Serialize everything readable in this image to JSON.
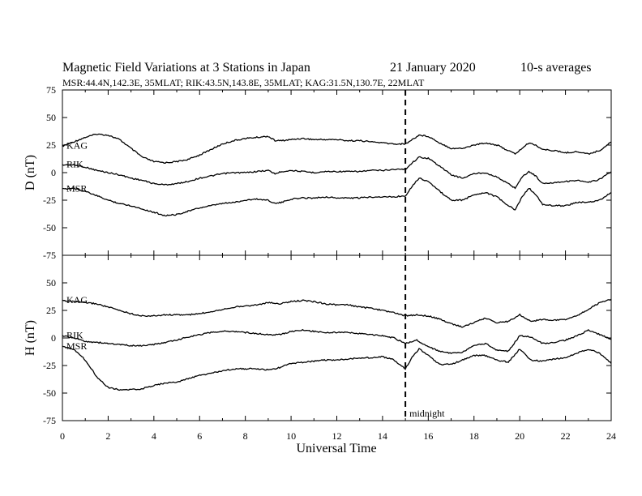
{
  "chart_data": {
    "type": "line",
    "title": {
      "main": "Magnetic Field Variations at 3 Stations in Japan",
      "date": "21 January 2020",
      "resolution": "10-s averages"
    },
    "subtitle": "MSR:44.4N,142.3E, 35MLAT;  RIK:43.5N,143.8E, 35MLAT;  KAG:31.5N,130.7E, 22MLAT",
    "xlabel": "Universal Time",
    "xlim": [
      0,
      24
    ],
    "xticks": [
      "0",
      "2",
      "4",
      "6",
      "8",
      "10",
      "12",
      "14",
      "16",
      "18",
      "20",
      "22",
      "24"
    ],
    "marker": {
      "x": 15,
      "label": "midnight"
    },
    "panels": [
      {
        "ylabel": "D (nT)",
        "ylim": [
          -75,
          75
        ],
        "yticks": [
          "75",
          "50",
          "25",
          "0",
          "-25",
          "-50",
          "-75"
        ],
        "series": [
          {
            "name": "KAG",
            "x": [
              0,
              0.5,
              1,
              1.5,
              2,
              2.5,
              3,
              3.5,
              4,
              4.5,
              5,
              5.5,
              6,
              6.5,
              7,
              7.5,
              8,
              8.5,
              9,
              9.3,
              9.6,
              10,
              10.5,
              11,
              11.5,
              12,
              12.5,
              13,
              13.5,
              14,
              14.5,
              15,
              15.3,
              15.6,
              16,
              16.5,
              17,
              17.5,
              18,
              18.5,
              19,
              19.5,
              19.8,
              20.1,
              20.4,
              20.7,
              21,
              21.5,
              22,
              22.5,
              23,
              23.5,
              24
            ],
            "values": [
              24,
              28,
              32,
              35,
              34,
              30,
              22,
              14,
              10,
              9,
              10,
              12,
              16,
              21,
              26,
              29,
              31,
              32,
              33,
              29,
              29,
              30,
              31,
              30,
              30,
              30,
              29,
              29,
              28,
              27,
              26,
              26,
              30,
              34,
              33,
              27,
              22,
              22,
              25,
              27,
              25,
              20,
              17,
              22,
              27,
              25,
              21,
              20,
              18,
              19,
              17,
              20,
              28
            ]
          },
          {
            "name": "RIK",
            "x": [
              0,
              0.5,
              1,
              1.5,
              2,
              2.5,
              3,
              3.5,
              4,
              4.5,
              5,
              5.5,
              6,
              6.5,
              7,
              7.5,
              8,
              8.5,
              9,
              9.3,
              9.6,
              10,
              10.5,
              11,
              11.5,
              12,
              12.5,
              13,
              13.5,
              14,
              14.5,
              15,
              15.3,
              15.6,
              16,
              16.5,
              17,
              17.5,
              18,
              18.5,
              19,
              19.5,
              19.8,
              20.1,
              20.4,
              20.7,
              21,
              21.5,
              22,
              22.5,
              23,
              23.5,
              24
            ],
            "values": [
              7,
              7,
              5,
              2,
              0,
              -2,
              -5,
              -7,
              -10,
              -11,
              -10,
              -8,
              -5,
              -3,
              -1,
              0,
              0,
              1,
              2,
              -1,
              1,
              2,
              1,
              0,
              1,
              1,
              1,
              1,
              2,
              2,
              3,
              3,
              9,
              14,
              13,
              6,
              -2,
              -5,
              -1,
              0,
              -4,
              -10,
              -14,
              -4,
              1,
              -3,
              -10,
              -9,
              -8,
              -7,
              -9,
              -6,
              1
            ]
          },
          {
            "name": "MSR",
            "x": [
              0,
              0.5,
              1,
              1.5,
              2,
              2.5,
              3,
              3.5,
              4,
              4.5,
              5,
              5.5,
              6,
              6.5,
              7,
              7.5,
              8,
              8.5,
              9,
              9.3,
              9.6,
              10,
              10.5,
              11,
              11.5,
              12,
              12.5,
              13,
              13.5,
              14,
              14.5,
              15,
              15.3,
              15.6,
              16,
              16.5,
              17,
              17.5,
              18,
              18.5,
              19,
              19.5,
              19.8,
              20.1,
              20.4,
              20.7,
              21,
              21.5,
              22,
              22.5,
              23,
              23.5,
              24
            ],
            "values": [
              -15,
              -14,
              -17,
              -21,
              -25,
              -28,
              -30,
              -33,
              -36,
              -39,
              -38,
              -35,
              -32,
              -30,
              -28,
              -27,
              -25,
              -24,
              -25,
              -28,
              -27,
              -24,
              -23,
              -23,
              -22,
              -23,
              -23,
              -23,
              -22,
              -22,
              -22,
              -21,
              -12,
              -5,
              -8,
              -17,
              -25,
              -25,
              -20,
              -18,
              -22,
              -30,
              -34,
              -22,
              -14,
              -20,
              -29,
              -30,
              -30,
              -27,
              -27,
              -25,
              -18
            ]
          }
        ]
      },
      {
        "ylabel": "H (nT)",
        "ylim": [
          -75,
          75
        ],
        "yticks": [
          "75",
          "50",
          "25",
          "0",
          "-25",
          "-50",
          "-75"
        ],
        "series": [
          {
            "name": "KAG",
            "x": [
              0,
              0.5,
              1,
              1.5,
              2,
              2.5,
              3,
              3.5,
              4,
              4.5,
              5,
              5.5,
              6,
              6.5,
              7,
              7.5,
              8,
              8.5,
              9,
              9.5,
              10,
              10.5,
              11,
              11.5,
              12,
              12.5,
              13,
              13.5,
              14,
              14.5,
              15,
              15.5,
              16,
              16.5,
              17,
              17.5,
              18,
              18.5,
              19,
              19.5,
              20,
              20.5,
              21,
              21.5,
              22,
              22.5,
              23,
              23.5,
              24
            ],
            "values": [
              34,
              33,
              32,
              31,
              28,
              25,
              22,
              20,
              20,
              21,
              21,
              21,
              22,
              24,
              26,
              28,
              29,
              30,
              32,
              31,
              33,
              34,
              33,
              31,
              30,
              30,
              28,
              27,
              25,
              23,
              20,
              21,
              20,
              17,
              13,
              10,
              14,
              18,
              14,
              15,
              21,
              15,
              17,
              16,
              17,
              20,
              26,
              32,
              35
            ]
          },
          {
            "name": "RIK",
            "x": [
              0,
              0.5,
              1,
              1.5,
              2,
              2.5,
              3,
              3.5,
              4,
              4.5,
              5,
              5.5,
              6,
              6.5,
              7,
              7.5,
              8,
              8.5,
              9,
              9.5,
              10,
              10.5,
              11,
              11.5,
              12,
              12.5,
              13,
              13.5,
              14,
              14.5,
              15,
              15.5,
              16,
              16.5,
              17,
              17.5,
              18,
              18.5,
              19,
              19.5,
              20,
              20.5,
              21,
              21.5,
              22,
              22.5,
              23,
              23.5,
              24
            ],
            "values": [
              2,
              0,
              -3,
              -4,
              -5,
              -6,
              -7,
              -7,
              -6,
              -4,
              -2,
              1,
              3,
              5,
              6,
              6,
              5,
              4,
              3,
              3,
              6,
              7,
              6,
              5,
              5,
              5,
              4,
              3,
              2,
              0,
              -5,
              -2,
              -8,
              -12,
              -14,
              -13,
              -7,
              -5,
              -11,
              -12,
              2,
              1,
              -5,
              -4,
              -2,
              2,
              7,
              3,
              -1
            ]
          },
          {
            "name": "MSR",
            "x": [
              0,
              0.5,
              1,
              1.5,
              2,
              2.5,
              3,
              3.5,
              4,
              4.5,
              5,
              5.5,
              6,
              6.5,
              7,
              7.5,
              8,
              8.5,
              9,
              9.5,
              10,
              10.5,
              11,
              11.5,
              12,
              12.5,
              13,
              13.5,
              14,
              14.5,
              15,
              15.3,
              15.6,
              16,
              16.5,
              17,
              17.5,
              18,
              18.5,
              19,
              19.5,
              20,
              20.5,
              21,
              21.5,
              22,
              22.5,
              23,
              23.5,
              24
            ],
            "values": [
              -8,
              -10,
              -20,
              -35,
              -45,
              -47,
              -47,
              -46,
              -43,
              -41,
              -40,
              -37,
              -34,
              -32,
              -30,
              -28,
              -28,
              -28,
              -29,
              -27,
              -23,
              -22,
              -21,
              -20,
              -20,
              -19,
              -18,
              -18,
              -17,
              -20,
              -28,
              -17,
              -10,
              -16,
              -24,
              -24,
              -20,
              -16,
              -16,
              -20,
              -22,
              -10,
              -20,
              -21,
              -19,
              -18,
              -14,
              -10,
              -14,
              -23
            ]
          }
        ]
      }
    ]
  }
}
